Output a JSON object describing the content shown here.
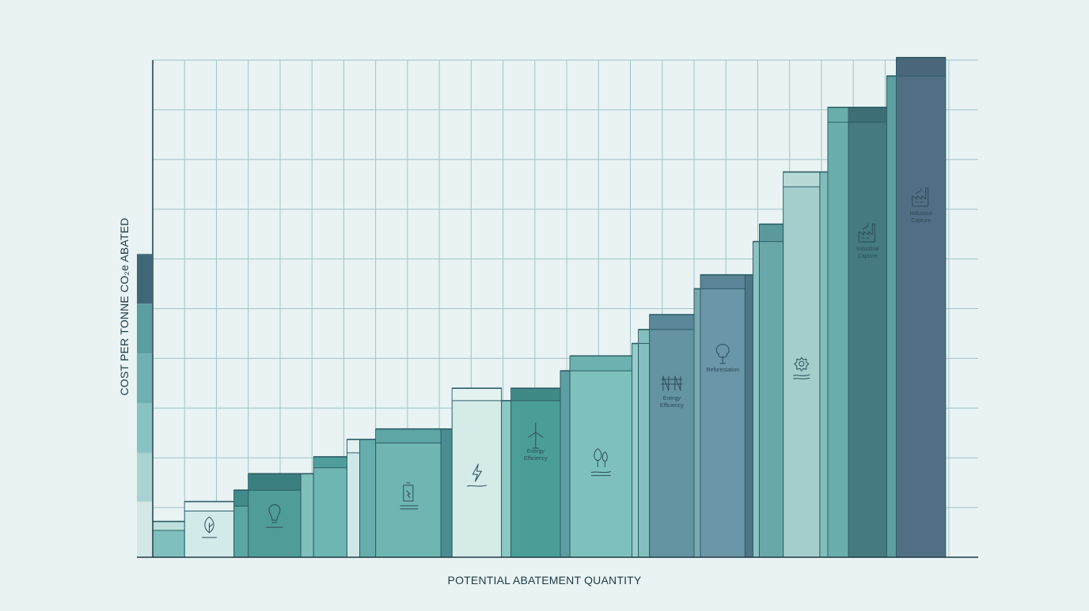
{
  "chart_data": {
    "type": "bar",
    "variant": "marginal-abatement-cost-curve",
    "title": "",
    "xlabel": "POTENTIAL ABATEMENT QUANTITY",
    "ylabel": "COST PER TONNE CO₂e ABATED",
    "ylim": [
      0,
      10
    ],
    "xlim": [
      0,
      25.5
    ],
    "grid": true,
    "legend": "none",
    "colors": {
      "background": "#e9f3f3",
      "grid": "#9fc3c7",
      "axis": "#1f3a45",
      "icon": "#2b4c58"
    },
    "left_scale": [
      {
        "y0": 0,
        "y1": 1.12,
        "color": "#d3e7e7"
      },
      {
        "y0": 1.12,
        "y1": 2.1,
        "color": "#a9d2d3"
      },
      {
        "y0": 2.1,
        "y1": 3.1,
        "color": "#88c3c3"
      },
      {
        "y0": 3.1,
        "y1": 4.1,
        "color": "#6fb0b2"
      },
      {
        "y0": 4.1,
        "y1": 5.1,
        "color": "#5b9ea1"
      },
      {
        "y0": 5.1,
        "y1": 6.1,
        "color": "#3f6777"
      }
    ],
    "bars": [
      {
        "x0": 0.0,
        "x1": 1.0,
        "value": 0.72,
        "step": 0.54,
        "fill": "#7fbfbe",
        "cap": "#bfe0df",
        "dark": "#2e5e66"
      },
      {
        "x0": 1.0,
        "x1": 2.55,
        "value": 1.12,
        "step": 0.93,
        "fill": "#d2eaea",
        "cap": "#e4f2f2",
        "dark": "#2e5e66",
        "icon": "leaf-icon"
      },
      {
        "x0": 2.55,
        "x1": 3.0,
        "value": 1.35,
        "step": 1.03,
        "fill": "#5aa6a2",
        "cap": "#3f8c8a",
        "dark": "#2e5e66"
      },
      {
        "x0": 3.0,
        "x1": 4.65,
        "value": 1.68,
        "step": 1.35,
        "fill": "#4f9c98",
        "cap": "#3c7f80",
        "dark": "#2e5e66",
        "icon": "lightbulb-icon"
      },
      {
        "x0": 4.65,
        "x1": 5.05,
        "value": 1.68,
        "step": 1.68,
        "fill": "#7fc0bc",
        "cap": "#7fc0bc",
        "dark": "#2e5e66"
      },
      {
        "x0": 5.05,
        "x1": 6.1,
        "value": 2.02,
        "step": 1.8,
        "fill": "#6db6b2",
        "cap": "#4f9e9c",
        "dark": "#2e5e66"
      },
      {
        "x0": 6.1,
        "x1": 6.5,
        "value": 2.37,
        "step": 2.1,
        "fill": "#cfe8e7",
        "cap": "#e0f1f0",
        "dark": "#2e5e66"
      },
      {
        "x0": 6.5,
        "x1": 7.0,
        "value": 2.37,
        "step": 2.37,
        "fill": "#66aead",
        "cap": "#66aead",
        "dark": "#2e5e66"
      },
      {
        "x0": 7.0,
        "x1": 9.05,
        "value": 2.58,
        "step": 2.3,
        "fill": "#6fb6b3",
        "cap": "#5ea6a5",
        "dark": "#2e5e66",
        "icon": "battery-icon"
      },
      {
        "x0": 9.05,
        "x1": 9.4,
        "value": 2.58,
        "step": 2.58,
        "fill": "#4b8c93",
        "cap": "#4b8c93",
        "dark": "#2e5e66"
      },
      {
        "x0": 9.4,
        "x1": 10.95,
        "value": 3.4,
        "step": 3.15,
        "fill": "#d4ebe8",
        "cap": "#e3f2f1",
        "dark": "#2e5e66",
        "icon": "lightning-icon"
      },
      {
        "x0": 10.95,
        "x1": 11.25,
        "value": 3.15,
        "step": 3.15,
        "fill": "#8ac8c3",
        "cap": "#8ac8c3",
        "dark": "#2e5e66"
      },
      {
        "x0": 11.25,
        "x1": 12.8,
        "value": 3.4,
        "step": 3.15,
        "fill": "#4b9e98",
        "cap": "#3f8987",
        "dark": "#2e5e66",
        "icon": "wind-turbine-icon",
        "label": "Energy\nEfficiency"
      },
      {
        "x0": 12.8,
        "x1": 13.1,
        "value": 3.75,
        "step": 3.75,
        "fill": "#5d9ea2",
        "cap": "#5d9ea2",
        "dark": "#2e5e66"
      },
      {
        "x0": 13.1,
        "x1": 15.05,
        "value": 4.05,
        "step": 3.75,
        "fill": "#7ec0bc",
        "cap": "#6bb2b0",
        "dark": "#2e5e66",
        "icon": "trees-icon"
      },
      {
        "x0": 15.05,
        "x1": 15.25,
        "value": 4.3,
        "step": 4.3,
        "fill": "#98cccb",
        "cap": "#98cccb",
        "dark": "#2e5e66"
      },
      {
        "x0": 15.25,
        "x1": 15.6,
        "value": 4.58,
        "step": 4.3,
        "fill": "#83bfbf",
        "cap": "#83bfbf",
        "dark": "#2e5e66"
      },
      {
        "x0": 15.6,
        "x1": 17.0,
        "value": 4.88,
        "step": 4.58,
        "fill": "#6493a2",
        "cap": "#5a879a",
        "dark": "#2e5e66",
        "icon": "power-lines-icon",
        "label": "Energy\nEfficiency"
      },
      {
        "x0": 17.0,
        "x1": 17.2,
        "value": 5.4,
        "step": 5.4,
        "fill": "#7aa9b2",
        "cap": "#7aa9b2",
        "dark": "#2e5e66"
      },
      {
        "x0": 17.2,
        "x1": 18.6,
        "value": 5.68,
        "step": 5.4,
        "fill": "#6b96a7",
        "cap": "#5b8596",
        "dark": "#2e5e66",
        "icon": "tree-icon",
        "label": "Reforestation"
      },
      {
        "x0": 18.6,
        "x1": 18.85,
        "value": 5.68,
        "step": 5.68,
        "fill": "#4d7585",
        "cap": "#4d7585",
        "dark": "#2e5e66"
      },
      {
        "x0": 18.85,
        "x1": 19.05,
        "value": 6.35,
        "step": 6.35,
        "fill": "#8bc3c2",
        "cap": "#8bc3c2",
        "dark": "#2e5e66"
      },
      {
        "x0": 19.05,
        "x1": 19.8,
        "value": 6.7,
        "step": 6.35,
        "fill": "#6aa7a9",
        "cap": "#5a9a9c",
        "dark": "#2e5e66"
      },
      {
        "x0": 19.8,
        "x1": 20.95,
        "value": 7.75,
        "step": 7.45,
        "fill": "#a3cecb",
        "cap": "#b7dad7",
        "dark": "#2e5e66",
        "icon": "gear-water-icon"
      },
      {
        "x0": 20.95,
        "x1": 21.2,
        "value": 7.75,
        "step": 7.75,
        "fill": "#80bdba",
        "cap": "#80bdba",
        "dark": "#2e5e66"
      },
      {
        "x0": 21.2,
        "x1": 21.85,
        "value": 9.05,
        "step": 8.75,
        "fill": "#6aaeac",
        "cap": "#6aaeac",
        "dark": "#2e5e66"
      },
      {
        "x0": 21.85,
        "x1": 23.05,
        "value": 9.05,
        "step": 8.75,
        "fill": "#447a80",
        "cap": "#3f6f76",
        "dark": "#2e5e66",
        "icon": "factory-icon",
        "label": "Industrial\nCapture"
      },
      {
        "x0": 23.05,
        "x1": 23.35,
        "value": 9.68,
        "step": 9.68,
        "fill": "#5d9ea0",
        "cap": "#5d9ea0",
        "dark": "#2e5e66"
      },
      {
        "x0": 23.35,
        "x1": 24.9,
        "value": 10.05,
        "step": 9.68,
        "fill": "#516f84",
        "cap": "#4a677b",
        "dark": "#2e5e66",
        "icon": "factory-icon",
        "label": "Industrial\nCapture"
      }
    ]
  }
}
